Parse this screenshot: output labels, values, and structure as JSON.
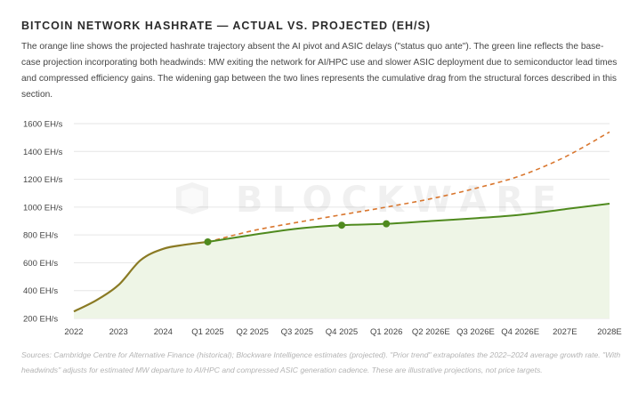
{
  "title": "BITCOIN NETWORK HASHRATE — ACTUAL VS. PROJECTED (EH/S)",
  "description": "The orange line shows the projected hashrate trajectory absent the AI pivot and ASIC delays (\"status quo ante\"). The green line reflects the base-case projection incorporating both headwinds: MW exiting the network for AI/HPC use and slower ASIC deployment due to semiconductor lead times and compressed efficiency gains. The widening gap between the two lines represents the cumulative drag from the structural forces described in this section.",
  "watermark": "BLOCKWARE",
  "source_note": "Sources: Cambridge Centre for Alternative Finance (historical); Blockware Intelligence estimates (projected). \"Prior trend\" extrapolates the 2022–2024 average growth rate. \"With headwinds\" adjusts for estimated MW departure to AI/HPC and compressed ASIC generation cadence. These are illustrative projections, not price targets.",
  "colors": {
    "projected": "#d9772f",
    "headwinds": "#4f8a1e",
    "historical": "#8a7a24",
    "area_fill": "#eef5e6",
    "grid": "#e6e6e6"
  },
  "chart_data": {
    "type": "line",
    "x_tick_labels": [
      "2022",
      "2023",
      "2024",
      "Q1 2025",
      "Q2 2025",
      "Q3 2025",
      "Q4 2025",
      "Q1 2026",
      "Q2 2026E",
      "Q3 2026E",
      "Q4 2026E",
      "2027E",
      "2028E"
    ],
    "y_tick_labels": [
      "200 EH/s",
      "400 EH/s",
      "600 EH/s",
      "800 EH/s",
      "1000 EH/s",
      "1200 EH/s",
      "1400 EH/s",
      "1600 EH/s"
    ],
    "ylim": [
      200,
      1600
    ],
    "grid": "horizontal",
    "series": [
      {
        "role": "historical",
        "style": "solid",
        "x": [
          0,
          0.5,
          1,
          1.5,
          2,
          2.5,
          3
        ],
        "values": [
          250,
          330,
          440,
          620,
          700,
          730,
          750
        ]
      },
      {
        "role": "projected",
        "style": "dashed",
        "x": [
          3,
          4,
          5,
          6,
          7,
          8,
          9,
          10,
          11,
          12
        ],
        "values": [
          750,
          830,
          890,
          945,
          1000,
          1060,
          1135,
          1225,
          1360,
          1540
        ]
      },
      {
        "role": "headwinds",
        "style": "solid",
        "area": true,
        "x": [
          3,
          4,
          5,
          6,
          7,
          8,
          9,
          10,
          11,
          12
        ],
        "values": [
          750,
          800,
          845,
          870,
          880,
          900,
          920,
          945,
          985,
          1025
        ],
        "markers": [
          3,
          6,
          7
        ]
      }
    ]
  }
}
